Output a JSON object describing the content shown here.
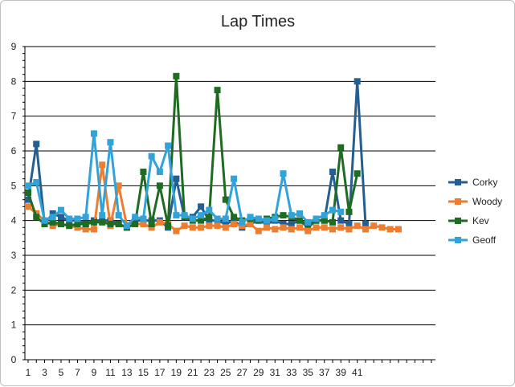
{
  "chart_data": {
    "type": "line",
    "title": "Lap Times",
    "xlabel": "",
    "ylabel": "",
    "ylim": [
      0,
      9
    ],
    "y_ticks": [
      0,
      1,
      2,
      3,
      4,
      5,
      6,
      7,
      8,
      9
    ],
    "x_range": [
      1,
      50
    ],
    "x_tick_labels": [
      "1",
      "3",
      "5",
      "7",
      "9",
      "11",
      "13",
      "15",
      "17",
      "19",
      "21",
      "23",
      "25",
      "27",
      "29",
      "31",
      "33",
      "35",
      "37",
      "39",
      "41"
    ],
    "grid": "horizontal",
    "legend_position": "right",
    "series": [
      {
        "name": "Corky",
        "color": "#255e91",
        "x": [
          1,
          2,
          3,
          4,
          5,
          6,
          7,
          8,
          9,
          10,
          11,
          12,
          13,
          14,
          15,
          16,
          17,
          18,
          19,
          20,
          21,
          22,
          23,
          24,
          25,
          26,
          27,
          28,
          29,
          30,
          31,
          32,
          33,
          34,
          35,
          36,
          37,
          38,
          39,
          40,
          41,
          42
        ],
        "y": [
          4.6,
          6.2,
          3.9,
          4.2,
          4.1,
          4.0,
          4.0,
          3.9,
          4.0,
          4.0,
          4.0,
          3.9,
          3.8,
          4.0,
          4.0,
          4.0,
          4.0,
          3.8,
          5.2,
          4.1,
          4.1,
          4.4,
          4.0,
          4.0,
          3.9,
          4.0,
          3.8,
          3.9,
          4.0,
          3.9,
          4.0,
          3.9,
          3.9,
          4.0,
          3.8,
          4.0,
          4.0,
          5.4,
          4.0,
          3.9,
          8.0,
          3.9
        ]
      },
      {
        "name": "Woody",
        "color": "#ed7d31",
        "x": [
          1,
          2,
          3,
          4,
          5,
          6,
          7,
          8,
          9,
          10,
          11,
          12,
          13,
          14,
          15,
          16,
          17,
          18,
          19,
          20,
          21,
          22,
          23,
          24,
          25,
          26,
          27,
          28,
          29,
          30,
          31,
          32,
          33,
          34,
          35,
          36,
          37,
          38,
          39,
          40,
          41,
          42,
          43,
          44,
          45,
          46
        ],
        "y": [
          4.4,
          4.2,
          4.0,
          3.85,
          3.9,
          3.85,
          3.8,
          3.75,
          3.75,
          5.6,
          3.85,
          5.0,
          3.85,
          3.9,
          3.9,
          3.8,
          3.95,
          3.9,
          3.7,
          3.85,
          3.8,
          3.8,
          3.85,
          3.85,
          3.8,
          3.9,
          3.85,
          3.9,
          3.7,
          3.8,
          3.75,
          3.8,
          3.75,
          3.8,
          3.7,
          3.8,
          3.8,
          3.75,
          3.8,
          3.75,
          3.85,
          3.75,
          3.85,
          3.8,
          3.75,
          3.75
        ]
      },
      {
        "name": "Kev",
        "color": "#1e6b22",
        "x": [
          1,
          2,
          3,
          4,
          5,
          6,
          7,
          8,
          9,
          10,
          11,
          12,
          13,
          14,
          15,
          16,
          17,
          18,
          19,
          20,
          21,
          22,
          23,
          24,
          25,
          26,
          27,
          28,
          29,
          30,
          31,
          32,
          33,
          34,
          35,
          36,
          37,
          38,
          39,
          40,
          41
        ],
        "y": [
          4.8,
          4.1,
          3.9,
          3.95,
          3.9,
          3.85,
          3.9,
          3.9,
          3.95,
          3.95,
          3.9,
          3.9,
          3.8,
          3.9,
          5.4,
          3.9,
          5.0,
          3.85,
          8.15,
          4.1,
          4.0,
          4.0,
          4.1,
          7.75,
          4.6,
          4.1,
          4.0,
          4.05,
          4.0,
          4.05,
          4.1,
          4.15,
          4.1,
          4.0,
          3.9,
          4.0,
          4.0,
          3.95,
          6.1,
          4.25,
          5.35
        ]
      },
      {
        "name": "Geoff",
        "color": "#31a3d8",
        "x": [
          1,
          2,
          3,
          4,
          5,
          6,
          7,
          8,
          9,
          10,
          11,
          12,
          13,
          14,
          15,
          16,
          17,
          18,
          19,
          20,
          21,
          22,
          23,
          24,
          25,
          26,
          27,
          28,
          29,
          30,
          31,
          32,
          33,
          34,
          35,
          36,
          37,
          38,
          39
        ],
        "y": [
          5.0,
          5.1,
          4.0,
          4.1,
          4.3,
          4.05,
          4.05,
          4.1,
          6.5,
          4.15,
          6.25,
          4.15,
          3.85,
          4.1,
          4.05,
          5.85,
          5.4,
          6.15,
          4.15,
          4.15,
          4.05,
          4.15,
          4.3,
          4.05,
          4.05,
          5.2,
          3.95,
          4.1,
          4.05,
          4.0,
          4.05,
          5.35,
          4.15,
          4.2,
          3.95,
          4.05,
          4.15,
          4.3,
          4.25
        ]
      }
    ]
  }
}
